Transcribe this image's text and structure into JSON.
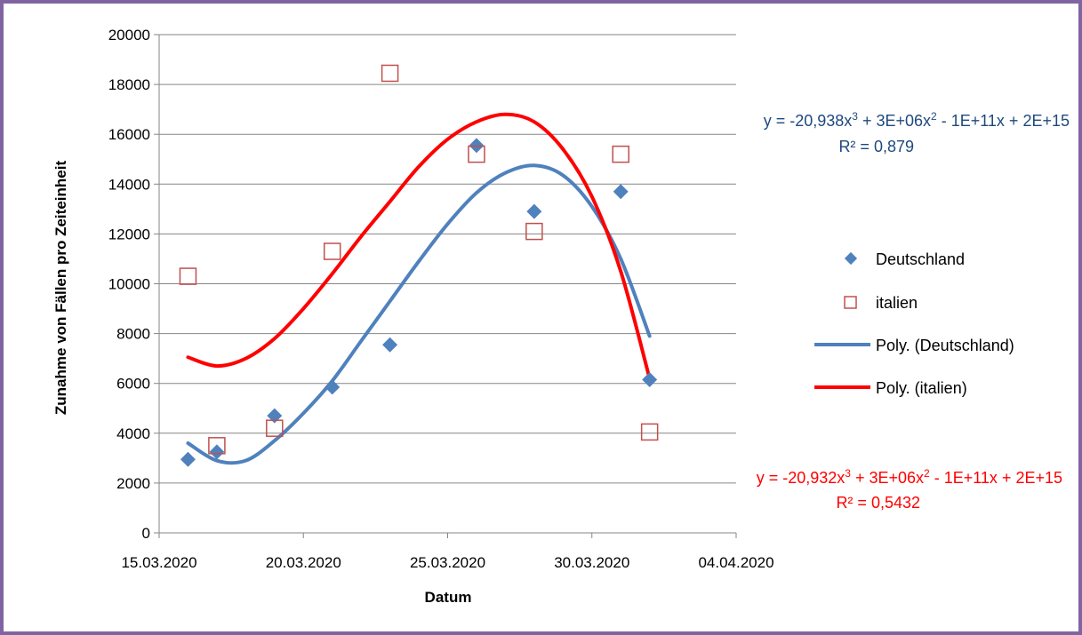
{
  "chart_data": {
    "type": "scatter",
    "title": "",
    "xlabel": "Datum",
    "ylabel": "Zunahme von Fällen pro Zeiteinheit",
    "xlim": [
      "15.03.2020",
      "04.04.2020"
    ],
    "ylim": [
      0,
      20000
    ],
    "x_ticks": [
      "15.03.2020",
      "20.03.2020",
      "25.03.2020",
      "30.03.2020",
      "04.04.2020"
    ],
    "y_ticks": [
      "0",
      "2000",
      "4000",
      "6000",
      "8000",
      "10000",
      "12000",
      "14000",
      "16000",
      "18000",
      "20000"
    ],
    "grid": "horizontal",
    "legend_position": "right",
    "series": [
      {
        "name": "Deutschland",
        "marker": "diamond",
        "color": "#4f81bd",
        "points": [
          {
            "x": "16.03.2020",
            "y": 2950
          },
          {
            "x": "17.03.2020",
            "y": 3250
          },
          {
            "x": "19.03.2020",
            "y": 4700
          },
          {
            "x": "21.03.2020",
            "y": 5850
          },
          {
            "x": "23.03.2020",
            "y": 7550
          },
          {
            "x": "26.03.2020",
            "y": 15550
          },
          {
            "x": "28.03.2020",
            "y": 12900
          },
          {
            "x": "31.03.2020",
            "y": 13700
          },
          {
            "x": "01.04.2020",
            "y": 6150
          }
        ]
      },
      {
        "name": "italien",
        "marker": "square-open",
        "color": "#c0504d",
        "points": [
          {
            "x": "16.03.2020",
            "y": 10300
          },
          {
            "x": "17.03.2020",
            "y": 3500
          },
          {
            "x": "19.03.2020",
            "y": 4200
          },
          {
            "x": "21.03.2020",
            "y": 11300
          },
          {
            "x": "23.03.2020",
            "y": 18450
          },
          {
            "x": "26.03.2020",
            "y": 15200
          },
          {
            "x": "28.03.2020",
            "y": 12100
          },
          {
            "x": "31.03.2020",
            "y": 15200
          },
          {
            "x": "01.04.2020",
            "y": 4050
          }
        ]
      }
    ],
    "trendlines": [
      {
        "name": "Poly. (Deutschland)",
        "color": "#4f81bd",
        "points": [
          {
            "x": "16.03.2020",
            "y": 3600
          },
          {
            "x": "17.03.2020",
            "y": 2900
          },
          {
            "x": "18.03.2020",
            "y": 2900
          },
          {
            "x": "19.03.2020",
            "y": 3700
          },
          {
            "x": "20.03.2020",
            "y": 4800
          },
          {
            "x": "21.03.2020",
            "y": 6100
          },
          {
            "x": "22.03.2020",
            "y": 7700
          },
          {
            "x": "23.03.2020",
            "y": 9300
          },
          {
            "x": "24.03.2020",
            "y": 10900
          },
          {
            "x": "25.03.2020",
            "y": 12400
          },
          {
            "x": "26.03.2020",
            "y": 13650
          },
          {
            "x": "27.03.2020",
            "y": 14450
          },
          {
            "x": "28.03.2020",
            "y": 14750
          },
          {
            "x": "29.03.2020",
            "y": 14350
          },
          {
            "x": "30.03.2020",
            "y": 13100
          },
          {
            "x": "31.03.2020",
            "y": 11000
          },
          {
            "x": "01.04.2020",
            "y": 7900
          }
        ],
        "equation": "y = -20,938x³ + 3E+06x² - 1E+11x + 2E+15",
        "r2": "R² = 0,879"
      },
      {
        "name": "Poly. (italien)",
        "color": "#ff0000",
        "points": [
          {
            "x": "16.03.2020",
            "y": 7050
          },
          {
            "x": "17.03.2020",
            "y": 6700
          },
          {
            "x": "18.03.2020",
            "y": 7000
          },
          {
            "x": "19.03.2020",
            "y": 7800
          },
          {
            "x": "20.03.2020",
            "y": 9000
          },
          {
            "x": "21.03.2020",
            "y": 10400
          },
          {
            "x": "22.03.2020",
            "y": 11900
          },
          {
            "x": "23.03.2020",
            "y": 13300
          },
          {
            "x": "24.03.2020",
            "y": 14700
          },
          {
            "x": "25.03.2020",
            "y": 15800
          },
          {
            "x": "26.03.2020",
            "y": 16500
          },
          {
            "x": "27.03.2020",
            "y": 16800
          },
          {
            "x": "28.03.2020",
            "y": 16500
          },
          {
            "x": "29.03.2020",
            "y": 15400
          },
          {
            "x": "30.03.2020",
            "y": 13500
          },
          {
            "x": "31.03.2020",
            "y": 10500
          },
          {
            "x": "01.04.2020",
            "y": 6200
          }
        ],
        "equation": "y = -20,932x³ + 3E+06x² - 1E+11x + 2E+15",
        "r2": "R² = 0,5432"
      }
    ]
  }
}
